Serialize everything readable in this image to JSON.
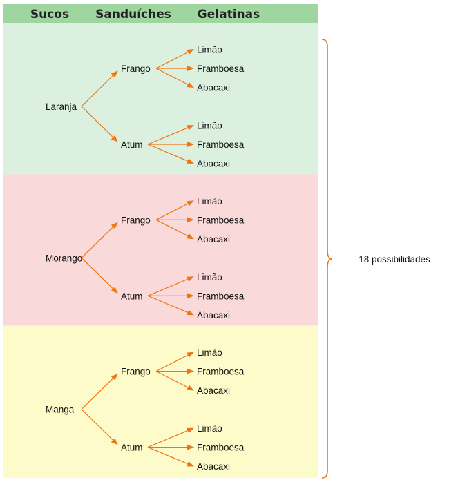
{
  "headers": {
    "col1": "Sucos",
    "col2": "Sanduíches",
    "col3": "Gelatinas"
  },
  "colors": {
    "header_bg": "#9fd59f",
    "arrow": "#ee7511",
    "brace": "#ee7511"
  },
  "total_label": "18 possibilidades",
  "groups": [
    {
      "juice": "Laranja",
      "color": "#dcf0e0",
      "sandwiches": [
        {
          "name": "Frango",
          "gelatins": [
            "Limão",
            "Framboesa",
            "Abacaxi"
          ]
        },
        {
          "name": "Atum",
          "gelatins": [
            "Limão",
            "Framboesa",
            "Abacaxi"
          ]
        }
      ]
    },
    {
      "juice": "Morango",
      "color": "#f9d9da",
      "sandwiches": [
        {
          "name": "Frango",
          "gelatins": [
            "Limão",
            "Framboesa",
            "Abacaxi"
          ]
        },
        {
          "name": "Atum",
          "gelatins": [
            "Limão",
            "Framboesa",
            "Abacaxi"
          ]
        }
      ]
    },
    {
      "juice": "Manga",
      "color": "#fefbca",
      "sandwiches": [
        {
          "name": "Frango",
          "gelatins": [
            "Limão",
            "Framboesa",
            "Abacaxi"
          ]
        },
        {
          "name": "Atum",
          "gelatins": [
            "Limão",
            "Framboesa",
            "Abacaxi"
          ]
        }
      ]
    }
  ]
}
